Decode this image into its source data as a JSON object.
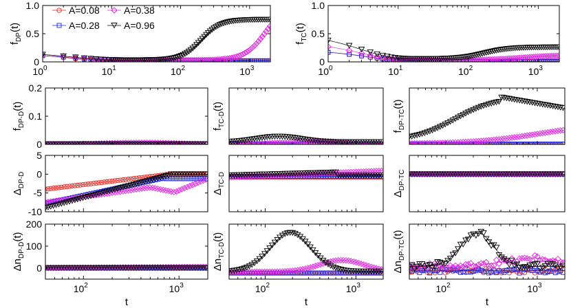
{
  "figure": {
    "legend": {
      "placement": "top-left of first panel",
      "entries": [
        {
          "label": "A=0.08",
          "series": "a008"
        },
        {
          "label": "A=0.38",
          "series": "a038"
        },
        {
          "label": "A=0.28",
          "series": "a028"
        },
        {
          "label": "A=0.96",
          "series": "a096"
        }
      ]
    },
    "series_styles": {
      "a008": {
        "color": "#e8201c",
        "marker": "circle"
      },
      "a028": {
        "color": "#1a24e0",
        "marker": "square"
      },
      "a038": {
        "color": "#e020e0",
        "marker": "diamond"
      },
      "a096": {
        "color": "#000000",
        "marker": "triangle-down"
      }
    }
  },
  "chart_data": [
    {
      "id": "fDP",
      "type": "scatter",
      "ylabel": "f",
      "ysub": "DP",
      "ysuffix": "(t)",
      "xscale": "log",
      "xlim": [
        1,
        2000
      ],
      "ylim": [
        0,
        1
      ],
      "yticks": [
        {
          "v": 0,
          "label": "0"
        },
        {
          "v": 0.5,
          "label": "0.5"
        },
        {
          "v": 1,
          "label": "1.0"
        }
      ],
      "xticks": [
        {
          "v": 1,
          "base": "10",
          "exp": "0"
        },
        {
          "v": 10,
          "base": "10",
          "exp": "1"
        },
        {
          "v": 100,
          "base": "10",
          "exp": "2"
        },
        {
          "v": 1000,
          "base": "10",
          "exp": "3"
        }
      ],
      "xlabel": "",
      "series": [
        {
          "key": "a008",
          "name": "A=0.08",
          "shape": "decay",
          "start": 0.11,
          "end": 0.0,
          "tau": 3
        },
        {
          "key": "a028",
          "name": "A=0.28",
          "shape": "decay",
          "start": 0.11,
          "end": 0.02,
          "tau": 3
        },
        {
          "key": "a038",
          "name": "A=0.38",
          "shape": "sig",
          "start": 0.13,
          "end": 1.1,
          "base": 0.03,
          "center": 1800,
          "width": 0.16
        },
        {
          "key": "a096",
          "name": "A=0.96",
          "shape": "sig",
          "start": 0.13,
          "end": 0.75,
          "base": 0.03,
          "center": 200,
          "width": 0.14
        }
      ]
    },
    {
      "id": "fTC",
      "type": "scatter",
      "ylabel": "f",
      "ysub": "TC",
      "ysuffix": "(t)",
      "xscale": "log",
      "xlim": [
        1,
        2000
      ],
      "ylim": [
        0,
        1
      ],
      "yticks": [
        {
          "v": 0,
          "label": "0"
        },
        {
          "v": 0.5,
          "label": "0.5"
        },
        {
          "v": 1,
          "label": "1.0"
        }
      ],
      "xticks": [
        {
          "v": 1,
          "base": "10",
          "exp": "0"
        },
        {
          "v": 10,
          "base": "10",
          "exp": "1"
        },
        {
          "v": 100,
          "base": "10",
          "exp": "2"
        },
        {
          "v": 1000,
          "base": "10",
          "exp": "3"
        }
      ],
      "xlabel": "",
      "series": [
        {
          "key": "a008",
          "name": "A=0.08",
          "shape": "decay",
          "start": 0.17,
          "end": 0.0,
          "tau": 4
        },
        {
          "key": "a028",
          "name": "A=0.28",
          "shape": "decay",
          "start": 0.17,
          "end": 0.01,
          "tau": 4
        },
        {
          "key": "a038",
          "name": "A=0.38",
          "shape": "sig",
          "start": 0.27,
          "end": 0.12,
          "base": 0.03,
          "center": 600,
          "width": 0.25
        },
        {
          "key": "a096",
          "name": "A=0.96",
          "shape": "sig",
          "start": 0.38,
          "end": 0.26,
          "base": 0.05,
          "center": 170,
          "width": 0.18
        }
      ]
    },
    {
      "id": "fDPD",
      "type": "scatter",
      "ylabel": "f",
      "ysub": "DP-D",
      "ysuffix": "(t)",
      "xscale": "log",
      "xlim": [
        40,
        2000
      ],
      "ylim": [
        0,
        0.2
      ],
      "yticks": [
        {
          "v": 0,
          "label": "0"
        },
        {
          "v": 0.1,
          "label": "0.1"
        },
        {
          "v": 0.2,
          "label": "0.2"
        }
      ],
      "xticks": [],
      "xlabel": "",
      "series": [
        {
          "key": "a008",
          "name": "A=0.08",
          "shape": "flat",
          "value": 0.0
        },
        {
          "key": "a028",
          "name": "A=0.28",
          "shape": "flat",
          "value": 0.0
        },
        {
          "key": "a038",
          "name": "A=0.38",
          "shape": "bump",
          "base": 0.0,
          "peak": 0.006,
          "center": 400,
          "width": 0.5
        },
        {
          "key": "a096",
          "name": "A=0.96",
          "shape": "flat",
          "value": 0.001
        }
      ]
    },
    {
      "id": "fTCD",
      "type": "scatter",
      "ylabel": "f",
      "ysub": "TC-D",
      "ysuffix": "(t)",
      "xscale": "log",
      "xlim": [
        40,
        2000
      ],
      "ylim": [
        0,
        0.2
      ],
      "yticks": [],
      "xticks": [],
      "xlabel": "",
      "series": [
        {
          "key": "a008",
          "name": "A=0.08",
          "shape": "flat",
          "value": 0.0
        },
        {
          "key": "a028",
          "name": "A=0.28",
          "shape": "flat",
          "value": 0.001
        },
        {
          "key": "a038",
          "name": "A=0.38",
          "shape": "bump",
          "base": 0.002,
          "peak": 0.012,
          "center": 350,
          "width": 0.4
        },
        {
          "key": "a096",
          "name": "A=0.96",
          "shape": "bump",
          "base": 0.008,
          "peak": 0.028,
          "center": 140,
          "width": 0.35
        }
      ]
    },
    {
      "id": "fDPTC",
      "type": "scatter",
      "ylabel": "f",
      "ysub": "DP-TC",
      "ysuffix": "(t)",
      "xscale": "log",
      "xlim": [
        40,
        2000
      ],
      "ylim": [
        0,
        0.2
      ],
      "yticks": [],
      "xticks": [],
      "xlabel": "",
      "series": [
        {
          "key": "a008",
          "name": "A=0.08",
          "shape": "flat",
          "value": 0.0
        },
        {
          "key": "a028",
          "name": "A=0.28",
          "shape": "flat",
          "value": 0.001
        },
        {
          "key": "a038",
          "name": "A=0.38",
          "shape": "sig",
          "start": 0.002,
          "end": 0.072,
          "base": 0.002,
          "center": 1000,
          "width": 0.35
        },
        {
          "key": "a096",
          "name": "A=0.96",
          "shape": "rise",
          "start": 0.012,
          "peak": 0.167,
          "tpeak": 400,
          "end": 0.128,
          "width": 0.22
        }
      ]
    },
    {
      "id": "dDPD",
      "type": "scatter",
      "ylabel": "Δ",
      "ysub": "DP-D",
      "ysuffix": "",
      "xscale": "log",
      "xlim": [
        40,
        2000
      ],
      "ylim": [
        -10,
        5
      ],
      "yticks": [
        {
          "v": 5,
          "label": "5"
        },
        {
          "v": 0,
          "label": "0"
        },
        {
          "v": -5,
          "label": "-5"
        },
        {
          "v": -10,
          "label": "-10"
        }
      ],
      "xticks": [],
      "xlabel": "",
      "series": [
        {
          "key": "a008",
          "name": "A=0.08",
          "shape": "logline",
          "start": -4.0,
          "end": -0.2,
          "tend": 700,
          "after": -0.1
        },
        {
          "key": "a028",
          "name": "A=0.28",
          "shape": "logline",
          "start": -7.8,
          "end": -1.0,
          "tend": 700,
          "after": -1.2
        },
        {
          "key": "a038",
          "name": "A=0.38",
          "shape": "dip",
          "start": -7.5,
          "mid": -3.5,
          "tmid": 500,
          "low": -4.8,
          "tlow": 900,
          "end": -1.2
        },
        {
          "key": "a096",
          "name": "A=0.96",
          "shape": "logline",
          "start": -9.0,
          "end": -0.2,
          "tend": 800,
          "after": 0.0
        }
      ]
    },
    {
      "id": "dTCD",
      "type": "scatter",
      "ylabel": "Δ",
      "ysub": "TC-D",
      "ysuffix": "",
      "xscale": "log",
      "xlim": [
        40,
        2000
      ],
      "ylim": [
        -10,
        5
      ],
      "yticks": [],
      "xticks": [],
      "xlabel": "",
      "series": [
        {
          "key": "a008",
          "name": "A=0.08",
          "shape": "flat",
          "value": -0.8
        },
        {
          "key": "a028",
          "name": "A=0.28",
          "shape": "flat",
          "value": -0.6
        },
        {
          "key": "a038",
          "name": "A=0.38",
          "shape": "logline",
          "start": -0.8,
          "end": 0.9,
          "tend": 2000,
          "after": 0.9
        },
        {
          "key": "a096",
          "name": "A=0.96",
          "shape": "logline",
          "start": -0.3,
          "end": 0.5,
          "tend": 600,
          "after": -0.3
        }
      ]
    },
    {
      "id": "dDPTC",
      "type": "scatter",
      "ylabel": "Δ",
      "ysub": "DP-TC",
      "ysuffix": "",
      "xscale": "log",
      "xlim": [
        40,
        2000
      ],
      "ylim": [
        -10,
        5
      ],
      "yticks": [],
      "xticks": [],
      "xlabel": "",
      "series": [
        {
          "key": "a008",
          "name": "A=0.08",
          "shape": "flat",
          "value": 0.0
        },
        {
          "key": "a028",
          "name": "A=0.28",
          "shape": "flat",
          "value": 0.0
        },
        {
          "key": "a038",
          "name": "A=0.38",
          "shape": "flat",
          "value": 0.0
        },
        {
          "key": "a096",
          "name": "A=0.96",
          "shape": "flat",
          "value": 0.0
        }
      ]
    },
    {
      "id": "nDPD",
      "type": "scatter",
      "ylabel": "Δn",
      "ysub": "DP-D",
      "ysuffix": "(t)",
      "xscale": "log",
      "xlim": [
        40,
        2000
      ],
      "ylim": [
        -50,
        200
      ],
      "yticks": [
        {
          "v": 200,
          "label": "200"
        },
        {
          "v": 100,
          "label": "100"
        },
        {
          "v": 0,
          "label": "0"
        }
      ],
      "xticks": [
        {
          "v": 100,
          "base": "10",
          "exp": "2"
        },
        {
          "v": 1000,
          "base": "10",
          "exp": "3"
        }
      ],
      "xlabel": "t",
      "series": [
        {
          "key": "a008",
          "name": "A=0.08",
          "shape": "flat",
          "value": 0
        },
        {
          "key": "a028",
          "name": "A=0.28",
          "shape": "flat",
          "value": 0
        },
        {
          "key": "a038",
          "name": "A=0.38",
          "shape": "logline",
          "start": 1,
          "end": 6,
          "tend": 2000,
          "after": 6
        },
        {
          "key": "a096",
          "name": "A=0.96",
          "shape": "flat",
          "value": 1
        }
      ]
    },
    {
      "id": "nTCD",
      "type": "scatter",
      "ylabel": "Δn",
      "ysub": "TC-D",
      "ysuffix": "(t)",
      "xscale": "log",
      "xlim": [
        40,
        2000
      ],
      "ylim": [
        -20,
        160
      ],
      "yticks": [],
      "xticks": [
        {
          "v": 100,
          "base": "10",
          "exp": "2"
        },
        {
          "v": 1000,
          "base": "10",
          "exp": "3"
        }
      ],
      "xlabel": "t",
      "series": [
        {
          "key": "a008",
          "name": "A=0.08",
          "shape": "flat",
          "value": 0
        },
        {
          "key": "a028",
          "name": "A=0.28",
          "shape": "flat",
          "value": 0
        },
        {
          "key": "a038",
          "name": "A=0.38",
          "shape": "bump",
          "base": 4,
          "peak": 42,
          "center": 700,
          "width": 0.35
        },
        {
          "key": "a096",
          "name": "A=0.96",
          "shape": "bump",
          "base": 5,
          "peak": 132,
          "center": 190,
          "width": 0.32
        }
      ]
    },
    {
      "id": "nDPTC",
      "type": "scatter",
      "ylabel": "Δn",
      "ysub": "DP-TC",
      "ysuffix": "(t)",
      "xscale": "log",
      "xlim": [
        40,
        2000
      ],
      "ylim": [
        -20,
        110
      ],
      "yticks": [],
      "xticks": [
        {
          "v": 100,
          "base": "10",
          "exp": "2"
        },
        {
          "v": 1000,
          "base": "10",
          "exp": "3"
        }
      ],
      "xlabel": "t",
      "series": [
        {
          "key": "a008",
          "name": "A=0.08",
          "shape": "flat",
          "value": 0,
          "noise": 8
        },
        {
          "key": "a028",
          "name": "A=0.28",
          "shape": "flat",
          "value": 0,
          "noise": 8
        },
        {
          "key": "a038",
          "name": "A=0.38",
          "shape": "bump",
          "base": 12,
          "peak": 30,
          "center": 900,
          "width": 0.4,
          "noise": 10
        },
        {
          "key": "a096",
          "name": "A=0.96",
          "shape": "bump",
          "base": 10,
          "peak": 90,
          "center": 220,
          "width": 0.25,
          "noise": 10
        }
      ]
    }
  ]
}
